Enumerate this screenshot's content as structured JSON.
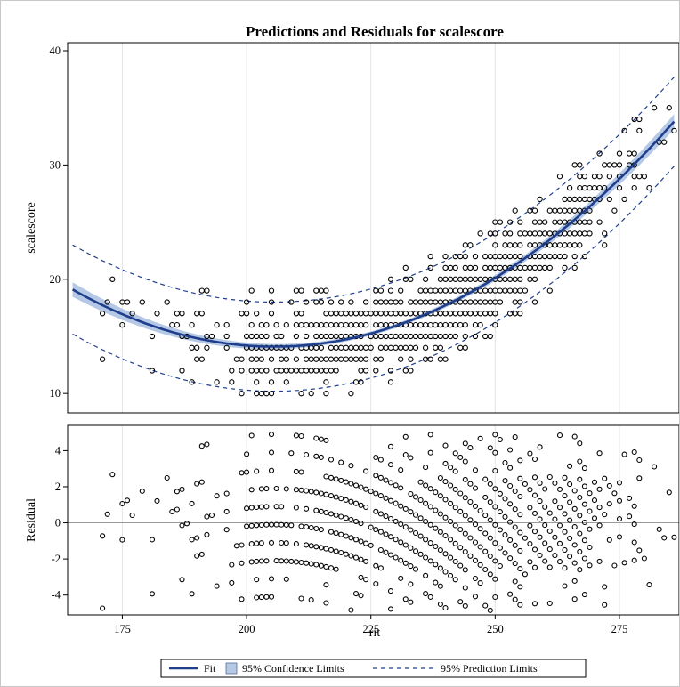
{
  "chart_data": {
    "type": "scatter",
    "title": "Predictions and Residuals for scalescore",
    "xlabel": "rit",
    "x_ticks": [
      175,
      200,
      225,
      250,
      275
    ],
    "xlim": [
      164,
      287
    ],
    "grid": "vertical",
    "panels": [
      {
        "name": "fit",
        "ylabel": "scalescore",
        "ylim": [
          8.3,
          40.7
        ],
        "y_ticks": [
          10,
          20,
          30,
          40
        ],
        "fit_curve": {
          "model": "quadratic",
          "knots": [
            {
              "rit": 165,
              "value": 19.1
            },
            {
              "rit": 205,
              "value": 14.1
            },
            {
              "rit": 286,
              "value": 33.8
            }
          ]
        },
        "confidence_halfwidth": {
          "ends": 0.65,
          "middle": 0.18
        },
        "prediction_halfwidth": 3.9,
        "points_summary": "Discrete integer scalescore observations spread around fit line across rit 165–286"
      },
      {
        "name": "residual",
        "ylabel": "Residual",
        "ylim": [
          -5.1,
          5.4
        ],
        "y_ticks": [
          -4,
          -2,
          0,
          2,
          4
        ],
        "reference_line": 0
      }
    ],
    "legend": {
      "placement": "bottom-center",
      "entries": [
        {
          "label": "Fit",
          "style": "solid-line",
          "color": "#1f3f8c"
        },
        {
          "label": "95% Confidence Limits",
          "style": "band",
          "color": "#b5c8e6"
        },
        {
          "label": "95% Prediction Limits",
          "style": "dashed-line",
          "color": "#1f3f8c"
        }
      ]
    },
    "colors": {
      "fit": "#1f3f8c",
      "band": "#b5c8e6",
      "points": "#000000",
      "grid": "#e4e4e4",
      "reference": "#9a9a9a"
    }
  }
}
